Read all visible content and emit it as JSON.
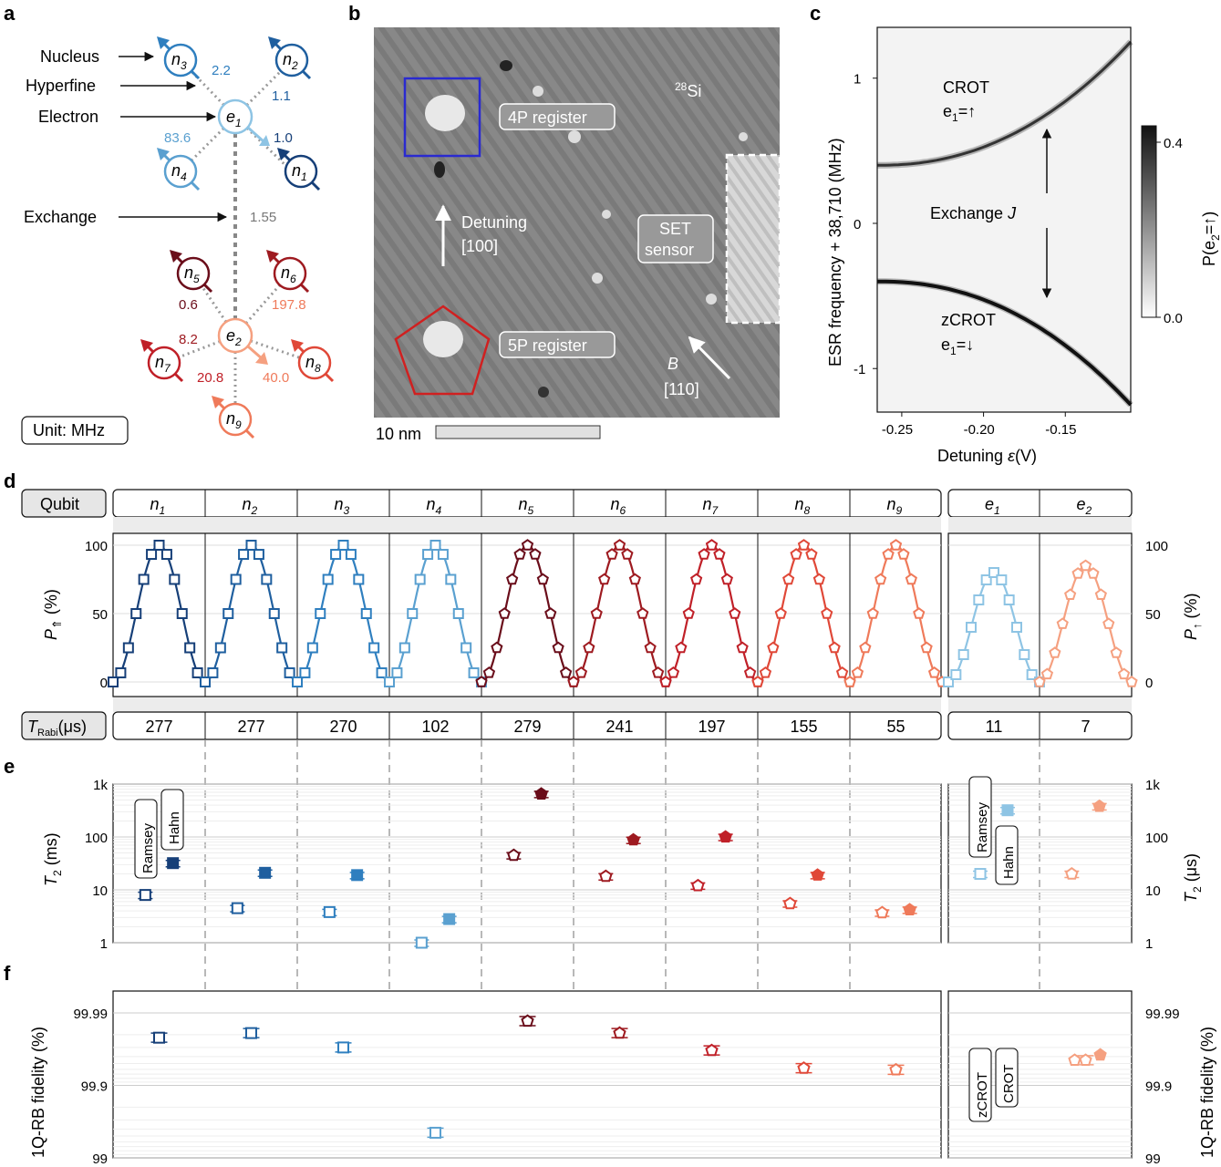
{
  "panel_labels": {
    "a": "a",
    "b": "b",
    "c": "c",
    "d": "d",
    "e": "e",
    "f": "f"
  },
  "panel_a": {
    "labels": {
      "nucleus": "Nucleus",
      "hyperfine": "Hyperfine",
      "electron": "Electron",
      "exchange": "Exchange"
    },
    "unit_box": "Unit: MHz",
    "exchange_value": "1.55",
    "hyperfine_e1": [
      {
        "label": "2.2",
        "color": "#2f7fbf"
      },
      {
        "label": "1.1",
        "color": "#1f5f9f"
      },
      {
        "label": "1.0",
        "color": "#163f78"
      },
      {
        "label": "83.6",
        "color": "#5aa0d0"
      }
    ],
    "hyperfine_e2": [
      {
        "label": "0.6",
        "color": "#6a0d1a"
      },
      {
        "label": "197.8",
        "color": "#ef7a5a"
      },
      {
        "label": "8.2",
        "color": "#9e1a20"
      },
      {
        "label": "40.0",
        "color": "#ef7a5a"
      },
      {
        "label": "20.8",
        "color": "#c02028"
      }
    ],
    "nuclei": [
      {
        "sym": "n",
        "sub": "1",
        "color": "#163f78"
      },
      {
        "sym": "n",
        "sub": "2",
        "color": "#1f5f9f"
      },
      {
        "sym": "n",
        "sub": "3",
        "color": "#2f7fbf"
      },
      {
        "sym": "n",
        "sub": "4",
        "color": "#5aa0d0"
      },
      {
        "sym": "n",
        "sub": "5",
        "color": "#6a0d1a"
      },
      {
        "sym": "n",
        "sub": "6",
        "color": "#9e1a20"
      },
      {
        "sym": "n",
        "sub": "7",
        "color": "#c02028"
      },
      {
        "sym": "n",
        "sub": "8",
        "color": "#e04838"
      },
      {
        "sym": "n",
        "sub": "9",
        "color": "#ef7a5a"
      }
    ],
    "electrons": [
      {
        "sym": "e",
        "sub": "1",
        "color": "#8ec4e4"
      },
      {
        "sym": "e",
        "sub": "2",
        "color": "#f5a080"
      }
    ]
  },
  "panel_b": {
    "labels": {
      "si_sup": "28",
      "si": "Si",
      "reg4p": "4P register",
      "reg5p": "5P register",
      "set1": "SET",
      "set2": "sensor",
      "det1": "Detuning",
      "det2": "[100]",
      "b1": "B",
      "b2": "[110]",
      "scale": "10 nm"
    }
  },
  "panel_c": {
    "chart_data": {
      "type": "heatmap",
      "xlabel": "Detuning ε (V)",
      "ylabel": "ESR frequency + 38,710 (MHz)",
      "colorbar_label": "P(e2=↑)",
      "xlim": [
        -0.265,
        -0.11
      ],
      "ylim": [
        -1.3,
        1.35
      ],
      "xticks": [
        "-0.25",
        "-0.20",
        "-0.15"
      ],
      "xtick_values": [
        -0.25,
        -0.2,
        -0.15
      ],
      "yticks": [
        "1",
        "0",
        "-1"
      ],
      "ytick_values": [
        1,
        0,
        -1
      ],
      "colorbar_ticks": [
        "0.4",
        "0.0"
      ],
      "annotations": [
        "CROT",
        "e1=↑",
        "Exchange J",
        "zCROT",
        "e1=↓"
      ]
    },
    "labels": {
      "crot": "CROT",
      "crot_s": "e",
      "crot_sub": "1",
      "crot_v": "=↑",
      "zcrot": "zCROT",
      "zcrot_s": "e",
      "zcrot_sub": "1",
      "zcrot_v": "=↓",
      "exch": "Exchange ",
      "exch_j": "J",
      "cb_label": "P(e",
      "cb_sub": "2",
      "cb_end": "=↑)",
      "xlabel": "Detuning ",
      "xlabel_sym": "ε",
      "xlabel_unit": "(V)",
      "ylabel": "ESR frequency + 38,710 (MHz)"
    }
  },
  "panel_d": {
    "row_label": "Qubit",
    "trabi_label": "T",
    "trabi_sub": "Rabi",
    "trabi_unit": "(μs)",
    "ylabel_left": "P",
    "ylabel_left_sub": "⇑",
    "ylabel_left_unit": " (%)",
    "ylabel_right": "P",
    "ylabel_right_sub": "↑",
    "ylabel_right_unit": " (%)",
    "yticks": [
      "100",
      "50",
      "0"
    ],
    "qubits": [
      {
        "sym": "n",
        "sub": "1",
        "trabi": "277",
        "color": "#163f78",
        "marker": "square",
        "amp": 100
      },
      {
        "sym": "n",
        "sub": "2",
        "trabi": "277",
        "color": "#1f5f9f",
        "marker": "square",
        "amp": 100
      },
      {
        "sym": "n",
        "sub": "3",
        "trabi": "270",
        "color": "#2f7fbf",
        "marker": "square",
        "amp": 100
      },
      {
        "sym": "n",
        "sub": "4",
        "trabi": "102",
        "color": "#5aa0d0",
        "marker": "square",
        "amp": 100
      },
      {
        "sym": "n",
        "sub": "5",
        "trabi": "279",
        "color": "#6a0d1a",
        "marker": "pentagon",
        "amp": 100
      },
      {
        "sym": "n",
        "sub": "6",
        "trabi": "241",
        "color": "#9e1a20",
        "marker": "pentagon",
        "amp": 100
      },
      {
        "sym": "n",
        "sub": "7",
        "trabi": "197",
        "color": "#c02028",
        "marker": "pentagon",
        "amp": 100
      },
      {
        "sym": "n",
        "sub": "8",
        "trabi": "155",
        "color": "#e04838",
        "marker": "pentagon",
        "amp": 100
      },
      {
        "sym": "n",
        "sub": "9",
        "trabi": "55",
        "color": "#ef7a5a",
        "marker": "pentagon",
        "amp": 100
      },
      {
        "sym": "e",
        "sub": "1",
        "trabi": "11",
        "color": "#8ec4e4",
        "marker": "square",
        "amp": 80
      },
      {
        "sym": "e",
        "sub": "2",
        "trabi": "7",
        "color": "#f5a080",
        "marker": "pentagon",
        "amp": 85
      }
    ]
  },
  "panel_e": {
    "ylabel_left": "T",
    "ylabel_left_sub": "2",
    "ylabel_left_unit": " (ms)",
    "ylabel_right": "T",
    "ylabel_right_sub": "2",
    "ylabel_right_unit": " (μs)",
    "yticks": [
      "1k",
      "100",
      "10",
      "1"
    ],
    "tags": {
      "ramsey": "Ramsey",
      "hahn": "Hahn"
    },
    "chart_data": {
      "type": "scatter",
      "yscale": "log",
      "ylim": [
        1,
        1000
      ],
      "series": [
        {
          "name": "Ramsey",
          "values": [
            8,
            4.5,
            3.8,
            1.0,
            45,
            18,
            12,
            5.5,
            3.7,
            20,
            20
          ]
        },
        {
          "name": "Hahn",
          "values": [
            32,
            21,
            19,
            2.8,
            650,
            88,
            100,
            19,
            4.2,
            320,
            380
          ]
        }
      ]
    }
  },
  "panel_f": {
    "ylabel": "1Q-RB fidelity (%)",
    "yticks": [
      "99.99",
      "99.9",
      "99"
    ],
    "tags": {
      "zcrot": "zCROT",
      "crot": "CROT"
    },
    "chart_data": {
      "type": "scatter",
      "yscale": "log-infidelity",
      "ylim": [
        99,
        99.995
      ],
      "values": [
        99.978,
        99.981,
        99.97,
        99.55,
        99.987,
        99.981,
        99.967,
        99.942,
        99.939,
        99.955,
        99.955
      ],
      "e2_second": 99.962
    }
  }
}
